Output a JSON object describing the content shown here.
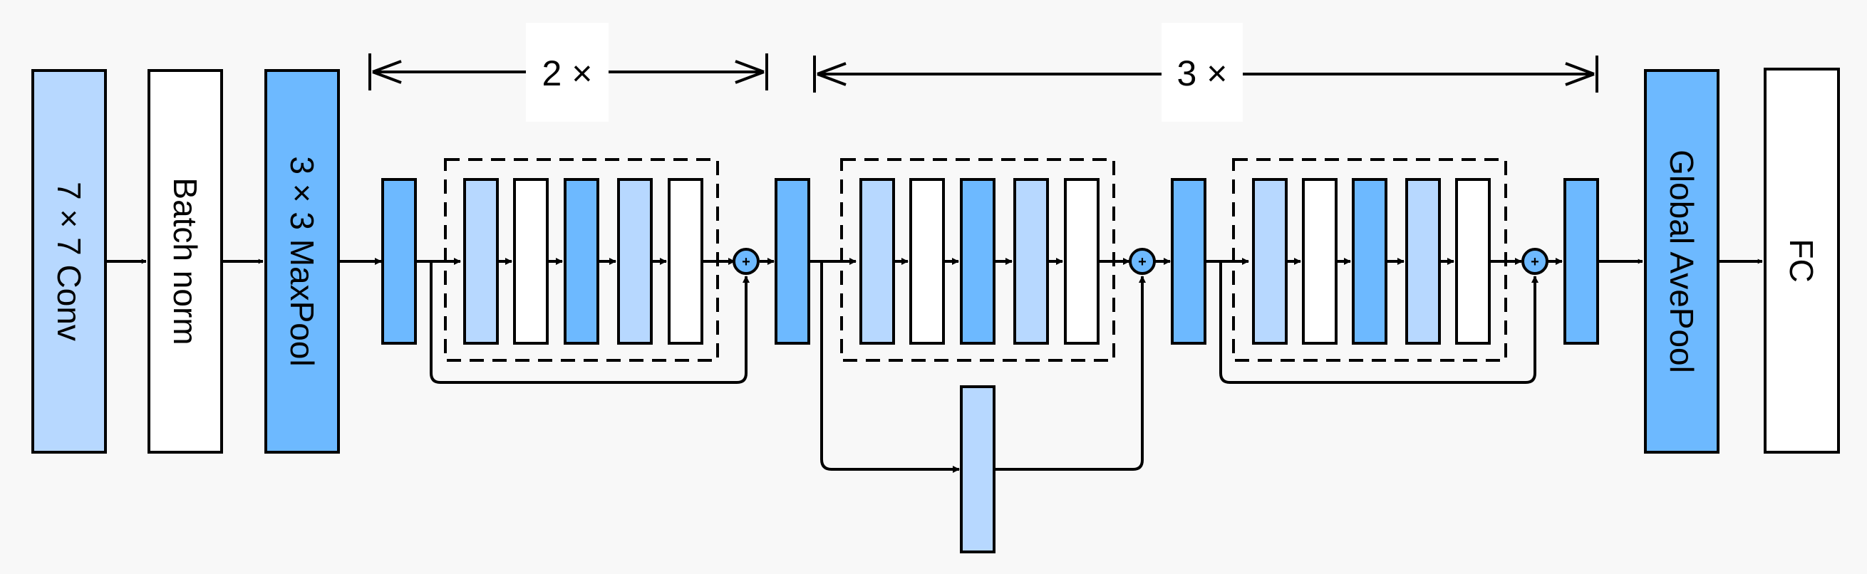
{
  "colors": {
    "background": "#f8f8f8",
    "light_blue": "#b7d8ff",
    "mid_blue": "#6db9ff",
    "white": "#ffffff",
    "stroke": "#000000"
  },
  "blocks": {
    "conv": "7 × 7 Conv",
    "batch_norm": "Batch norm",
    "maxpool": "3 × 3 MaxPool",
    "global_avepool": "Global AvePool",
    "fc": "FC"
  },
  "repeats": {
    "first": "2 ×",
    "second": "3 ×"
  },
  "residual_add_symbol": "+"
}
